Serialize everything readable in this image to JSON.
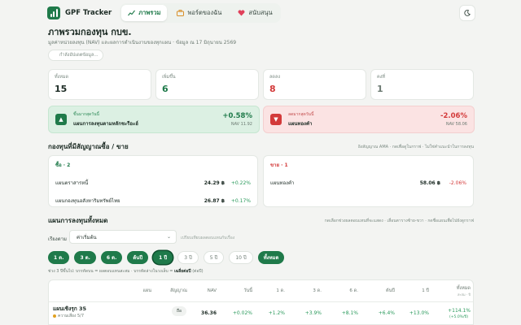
{
  "app": {
    "name": "GPF Tracker"
  },
  "nav": {
    "tabs": [
      {
        "label": "ภาพรวม",
        "active": true
      },
      {
        "label": "พอร์ตของฉัน",
        "active": false
      },
      {
        "label": "สนับสนุน",
        "active": false
      }
    ]
  },
  "header": {
    "title": "ภาพรวมกองทุน กบข.",
    "subtitle": "มูลค่าหน่วยลงทุน (NAV) และผลการดำเนินงานของทุกแผน · ข้อมูล ณ 17 มิถุนายน 2569",
    "update_button": "กำลังอัปเดตข้อมูล..."
  },
  "stats": [
    {
      "label": "ทั้งหมด",
      "value": "15",
      "color": "#1c2b24"
    },
    {
      "label": "เพิ่มขึ้น",
      "value": "6",
      "color": "#1f7a4a"
    },
    {
      "label": "ลดลง",
      "value": "8",
      "color": "#d33a3a"
    },
    {
      "label": "คงที่",
      "value": "1",
      "color": "#6c7a72"
    }
  ],
  "highlights": {
    "top": {
      "caption": "ขึ้นมากสุดวันนี้",
      "name": "แผนการลงทุนตามหลักชะรีอะฮ์",
      "pct": "+0.58%",
      "nav": "NAV 11.92"
    },
    "bottom": {
      "caption": "ลดมากสุดวันนี้",
      "name": "แผนทองคำ",
      "pct": "-2.06%",
      "nav": "NAV 58.06"
    }
  },
  "signals": {
    "title": "กองทุนที่มีสัญญาณซื้อ / ขาย",
    "note": "อิงสัญญาณ AMA · กดเพื่อดูในกราฟ · ไม่ใช่คำแนะนำในการลงทุน",
    "buy": {
      "header": "ซื้อ · 2",
      "items": [
        {
          "name": "แผนตราสารหนี้",
          "price": "24.29 ฿",
          "change": "+0.22%"
        },
        {
          "name": "แผนกองทุนอสังหาริมทรัพย์ไทย",
          "price": "26.87 ฿",
          "change": "+0.17%"
        }
      ]
    },
    "sell": {
      "header": "ขาย · 1",
      "items": [
        {
          "name": "แผนทองคำ",
          "price": "58.06 ฿",
          "change": "-2.06%"
        }
      ]
    }
  },
  "plans": {
    "title": "แผนการลงทุนทั้งหมด",
    "note": "กดเลือกช่วงผลตอบแทนที่จะแสดง · เลื่อนตารางซ้าย-ขวา · กดชื่อแผนเพื่อไปยังดูกราฟ",
    "sort_label": "เรียงตาม",
    "sort_value": "ค่าเริ่มต้น",
    "sort_hint": "เปรียบเทียบผลตอบแทนกับเรื่อง",
    "periods": [
      {
        "label": "1 ด.",
        "on": true,
        "ring": false
      },
      {
        "label": "3 ด.",
        "on": true,
        "ring": false
      },
      {
        "label": "6 ด.",
        "on": true,
        "ring": false
      },
      {
        "label": "ต้นปี",
        "on": true,
        "ring": false
      },
      {
        "label": "1 ปี",
        "on": true,
        "ring": true
      },
      {
        "label": "3 ปี",
        "on": false,
        "ring": false
      },
      {
        "label": "5 ปี",
        "on": false,
        "ring": false
      },
      {
        "label": "10 ปี",
        "on": false,
        "ring": false
      },
      {
        "label": "ทั้งหมด",
        "on": true,
        "ring": false
      }
    ],
    "period_note_a": "ช่วง 3 ปีขึ้นไป: บรรทัดบน = ผลตอบแทนสะสม · บรรทัดล่างในวงเล็บ = ",
    "period_note_b": "เฉลี่ยต่อปี",
    "period_note_c": " (ต่อปี)"
  },
  "table": {
    "columns": {
      "plan": "แผน",
      "signal": "สัญญาณ",
      "nav": "NAV",
      "day": "วันนี้",
      "m1": "1 ด.",
      "m3": "3 ด.",
      "m6": "6 ด.",
      "ytd": "ต้นปี",
      "y1": "1 ปี",
      "all": "ทั้งหมด",
      "all_sub": "สะสม · ปี"
    },
    "rows": [
      {
        "name": "แผนเชิงรุก 35",
        "risk": "ความเสี่ยง 5/7",
        "signal": "ถือ",
        "nav": "36.36",
        "day": "+0.02%",
        "m1": "+1.2%",
        "m3": "+3.9%",
        "m6": "+8.1%",
        "ytd": "+6.4%",
        "y1": "+13.0%",
        "all": "+114.1%",
        "all_annual": "(+5.0%/ปี)"
      }
    ]
  }
}
